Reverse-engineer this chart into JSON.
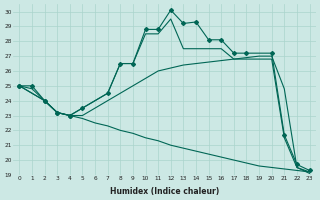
{
  "xlabel": "Humidex (Indice chaleur)",
  "bg_color": "#cce8e4",
  "grid_color": "#aad4cc",
  "line_color": "#006655",
  "xlim": [
    -0.5,
    23.5
  ],
  "ylim": [
    19,
    30.5
  ],
  "xticks": [
    0,
    1,
    2,
    3,
    4,
    5,
    6,
    7,
    8,
    9,
    10,
    11,
    12,
    13,
    14,
    15,
    16,
    17,
    18,
    19,
    20,
    21,
    22,
    23
  ],
  "yticks": [
    19,
    20,
    21,
    22,
    23,
    24,
    25,
    26,
    27,
    28,
    29,
    30
  ],
  "series": [
    {
      "x": [
        0,
        2,
        3,
        4,
        5,
        7,
        8,
        9,
        10,
        11,
        12,
        13,
        14,
        15,
        16,
        17,
        18,
        20,
        21,
        22,
        23
      ],
      "y": [
        25,
        24,
        23.2,
        23.0,
        23.5,
        24.5,
        26.5,
        26.5,
        28.8,
        28.8,
        30.1,
        29.2,
        29.3,
        28.1,
        28.1,
        27.2,
        27.2,
        27.2,
        21.7,
        19.7,
        19.3
      ],
      "has_marker": true
    },
    {
      "x": [
        0,
        2,
        3,
        4,
        5,
        7,
        8,
        9,
        10,
        11,
        12,
        13,
        14,
        15,
        16,
        17,
        18,
        20,
        21,
        22,
        23
      ],
      "y": [
        25,
        24,
        23.2,
        23.0,
        23.5,
        24.5,
        26.5,
        26.5,
        28.5,
        28.5,
        29.5,
        27.5,
        27.5,
        27.5,
        27.5,
        26.8,
        26.8,
        26.8,
        21.5,
        19.5,
        19.1
      ],
      "has_marker": false
    },
    {
      "x": [
        0,
        1,
        2,
        3,
        4,
        5,
        6,
        7,
        8,
        9,
        10,
        11,
        12,
        13,
        14,
        15,
        16,
        17,
        18,
        19,
        20,
        21,
        22,
        23
      ],
      "y": [
        25.0,
        25.0,
        24.0,
        23.2,
        23.0,
        23.0,
        23.5,
        24.0,
        24.5,
        25.0,
        25.5,
        26.0,
        26.2,
        26.4,
        26.5,
        26.6,
        26.7,
        26.8,
        26.9,
        27.0,
        27.0,
        24.8,
        19.5,
        19.2
      ],
      "has_marker": true,
      "markevery": [
        0,
        1,
        2,
        3,
        4
      ]
    },
    {
      "x": [
        0,
        1,
        2,
        3,
        4,
        5,
        6,
        7,
        8,
        9,
        10,
        11,
        12,
        13,
        14,
        15,
        16,
        17,
        18,
        19,
        20,
        21,
        22,
        23
      ],
      "y": [
        25.0,
        24.8,
        24.0,
        23.2,
        23.0,
        22.8,
        22.5,
        22.3,
        22.0,
        21.8,
        21.5,
        21.3,
        21.0,
        20.8,
        20.6,
        20.4,
        20.2,
        20.0,
        19.8,
        19.6,
        19.5,
        19.4,
        19.3,
        19.2
      ],
      "has_marker": false
    }
  ]
}
